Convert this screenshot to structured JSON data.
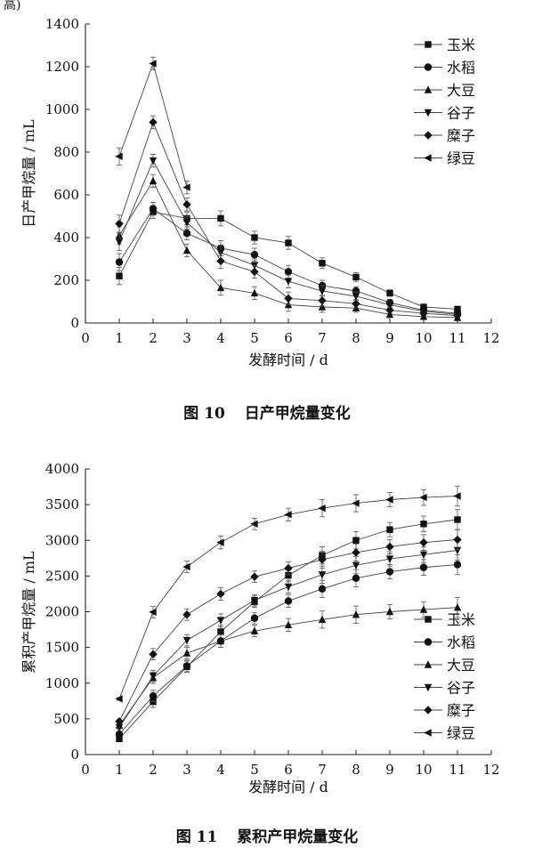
{
  "page_header": "高)",
  "chart_data": [
    {
      "type": "line",
      "caption_no": "图 10",
      "caption_text": "日产甲烷量变化",
      "ylabel": "日产甲烷量 / mL",
      "xlabel": "发酵时间 / d",
      "xlim": [
        0,
        12
      ],
      "ylim": [
        0,
        1400
      ],
      "xticks": [
        0,
        1,
        2,
        3,
        4,
        5,
        6,
        7,
        8,
        9,
        10,
        11,
        12
      ],
      "yticks": [
        0,
        200,
        400,
        600,
        800,
        1000,
        1200,
        1400
      ],
      "legend_position": "top-right",
      "grid": false,
      "x": [
        1,
        2,
        3,
        4,
        5,
        6,
        7,
        8,
        9,
        10,
        11
      ],
      "series": [
        {
          "name": "玉米",
          "marker": "square",
          "values": [
            220,
            520,
            490,
            490,
            400,
            375,
            280,
            215,
            140,
            75,
            65
          ]
        },
        {
          "name": "水稻",
          "marker": "circle",
          "values": [
            285,
            535,
            420,
            350,
            320,
            240,
            175,
            150,
            95,
            60,
            45
          ]
        },
        {
          "name": "大豆",
          "marker": "triangle-up",
          "values": [
            410,
            665,
            340,
            165,
            140,
            85,
            75,
            70,
            40,
            30,
            25
          ]
        },
        {
          "name": "谷子",
          "marker": "triangle-down",
          "values": [
            380,
            760,
            470,
            330,
            270,
            195,
            150,
            125,
            85,
            55,
            40
          ]
        },
        {
          "name": "糜子",
          "marker": "diamond",
          "values": [
            465,
            940,
            555,
            290,
            240,
            115,
            105,
            90,
            60,
            45,
            35
          ]
        },
        {
          "name": "绿豆",
          "marker": "triangle-left",
          "values": [
            780,
            1215,
            635,
            null,
            null,
            null,
            null,
            null,
            null,
            null,
            null
          ]
        }
      ],
      "errors": [
        40,
        30,
        30,
        35,
        30,
        30,
        25,
        20,
        15,
        10,
        10
      ]
    },
    {
      "type": "line",
      "caption_no": "图 11",
      "caption_text": "累积产甲烷量变化",
      "ylabel": "累积产甲烷量 / mL",
      "xlabel": "发酵时间 / d",
      "xlim": [
        0,
        12
      ],
      "ylim": [
        0,
        4000
      ],
      "xticks": [
        0,
        1,
        2,
        3,
        4,
        5,
        6,
        7,
        8,
        9,
        10,
        11,
        12
      ],
      "yticks": [
        0,
        500,
        1000,
        1500,
        2000,
        2500,
        3000,
        3500,
        4000
      ],
      "legend_position": "bottom-right",
      "grid": false,
      "x": [
        1,
        2,
        3,
        4,
        5,
        6,
        7,
        8,
        9,
        10,
        11
      ],
      "series": [
        {
          "name": "玉米",
          "marker": "square",
          "values": [
            220,
            740,
            1230,
            1720,
            2140,
            2510,
            2790,
            3000,
            3150,
            3230,
            3290
          ]
        },
        {
          "name": "水稻",
          "marker": "circle",
          "values": [
            285,
            820,
            1240,
            1590,
            1910,
            2150,
            2320,
            2470,
            2560,
            2620,
            2660
          ]
        },
        {
          "name": "大豆",
          "marker": "triangle-up",
          "values": [
            410,
            1075,
            1420,
            1590,
            1730,
            1815,
            1890,
            1960,
            2000,
            2030,
            2060
          ]
        },
        {
          "name": "谷子",
          "marker": "triangle-down",
          "values": [
            380,
            1100,
            1600,
            1880,
            2160,
            2350,
            2520,
            2650,
            2740,
            2800,
            2860
          ]
        },
        {
          "name": "糜子",
          "marker": "diamond",
          "values": [
            465,
            1405,
            1960,
            2250,
            2490,
            2610,
            2730,
            2830,
            2910,
            2970,
            3010
          ]
        },
        {
          "name": "绿豆",
          "marker": "triangle-left",
          "values": [
            780,
            1995,
            2630,
            2970,
            3230,
            3360,
            3450,
            3520,
            3570,
            3600,
            3620
          ]
        }
      ],
      "errors": [
        20,
        80,
        80,
        90,
        80,
        90,
        120,
        120,
        100,
        110,
        140
      ]
    }
  ]
}
